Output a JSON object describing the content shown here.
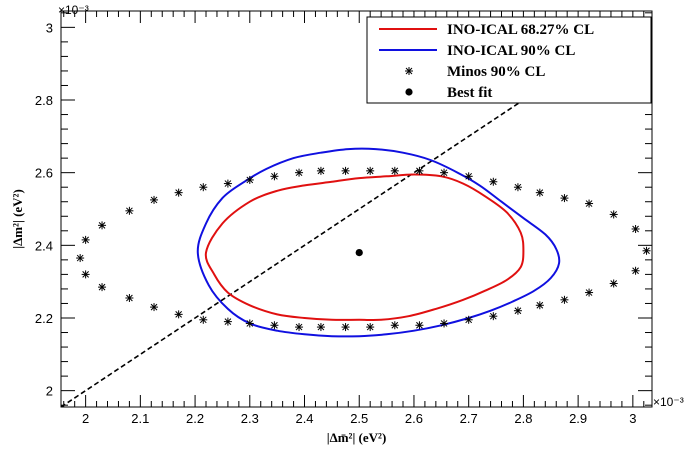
{
  "chart_data": {
    "type": "scatter",
    "xlabel": "|Δm̄²| (eV²)",
    "ylabel": "|Δm²| (eV²)",
    "x_multiplier": "×10⁻³",
    "y_multiplier": "×10⁻³",
    "xlim": [
      1.955,
      3.035
    ],
    "ylim": [
      1.955,
      3.045
    ],
    "x_ticks": [
      "2",
      "2.1",
      "2.2",
      "2.3",
      "2.4",
      "2.5",
      "2.6",
      "2.7",
      "2.8",
      "2.9",
      "3"
    ],
    "y_ticks": [
      "2",
      "2.2",
      "2.4",
      "2.6",
      "2.8",
      "3"
    ],
    "legend_position": "top-right",
    "series": [
      {
        "name": "INO-ICAL 68.27% CL",
        "kind": "contour",
        "color": "#e01010",
        "x": [
          2.22,
          2.25,
          2.3,
          2.35,
          2.4,
          2.45,
          2.5,
          2.55,
          2.6,
          2.65,
          2.69,
          2.73,
          2.77,
          2.795,
          2.8,
          2.795,
          2.77,
          2.73,
          2.69,
          2.64,
          2.59,
          2.54,
          2.5,
          2.45,
          2.4,
          2.35,
          2.3,
          2.26,
          2.235,
          2.22
        ],
        "y": [
          2.38,
          2.46,
          2.52,
          2.55,
          2.565,
          2.575,
          2.585,
          2.59,
          2.595,
          2.59,
          2.57,
          2.535,
          2.49,
          2.435,
          2.385,
          2.34,
          2.305,
          2.275,
          2.25,
          2.225,
          2.205,
          2.195,
          2.195,
          2.195,
          2.2,
          2.21,
          2.235,
          2.27,
          2.32,
          2.38
        ]
      },
      {
        "name": "INO-ICAL 90% CL",
        "kind": "contour",
        "color": "#1010e0",
        "x": [
          2.205,
          2.22,
          2.25,
          2.29,
          2.33,
          2.38,
          2.43,
          2.48,
          2.53,
          2.58,
          2.63,
          2.68,
          2.72,
          2.76,
          2.8,
          2.84,
          2.86,
          2.865,
          2.85,
          2.82,
          2.78,
          2.74,
          2.7,
          2.65,
          2.6,
          2.55,
          2.5,
          2.45,
          2.4,
          2.35,
          2.3,
          2.26,
          2.225,
          2.205
        ],
        "y": [
          2.38,
          2.46,
          2.53,
          2.575,
          2.61,
          2.64,
          2.655,
          2.665,
          2.665,
          2.655,
          2.635,
          2.6,
          2.565,
          2.52,
          2.475,
          2.43,
          2.39,
          2.35,
          2.31,
          2.275,
          2.245,
          2.22,
          2.2,
          2.18,
          2.165,
          2.155,
          2.15,
          2.15,
          2.155,
          2.165,
          2.185,
          2.225,
          2.29,
          2.38
        ]
      },
      {
        "name": "Minos 90% CL",
        "kind": "markers",
        "color": "#000000",
        "x": [
          1.99,
          2.0,
          2.03,
          2.08,
          2.125,
          2.17,
          2.215,
          2.26,
          2.3,
          2.345,
          2.39,
          2.43,
          2.475,
          2.52,
          2.565,
          2.61,
          2.655,
          2.7,
          2.745,
          2.79,
          2.83,
          2.875,
          2.92,
          2.965,
          3.005,
          3.025,
          3.005,
          2.965,
          2.92,
          2.875,
          2.83,
          2.79,
          2.745,
          2.7,
          2.655,
          2.61,
          2.565,
          2.52,
          2.475,
          2.43,
          2.39,
          2.345,
          2.3,
          2.26,
          2.215,
          2.17,
          2.125,
          2.08,
          2.03,
          2.0
        ],
        "y": [
          2.365,
          2.415,
          2.455,
          2.495,
          2.525,
          2.545,
          2.56,
          2.57,
          2.58,
          2.59,
          2.6,
          2.605,
          2.605,
          2.605,
          2.605,
          2.605,
          2.6,
          2.59,
          2.575,
          2.56,
          2.545,
          2.53,
          2.515,
          2.485,
          2.445,
          2.385,
          2.33,
          2.295,
          2.27,
          2.25,
          2.235,
          2.22,
          2.205,
          2.195,
          2.185,
          2.18,
          2.18,
          2.175,
          2.175,
          2.175,
          2.175,
          2.18,
          2.185,
          2.19,
          2.195,
          2.21,
          2.23,
          2.255,
          2.285,
          2.32
        ]
      },
      {
        "name": "Best fit",
        "kind": "point",
        "color": "#000000",
        "x": [
          2.5
        ],
        "y": [
          2.38
        ]
      }
    ],
    "diagonal_line": {
      "x": [
        1.955,
        2.8
      ],
      "y": [
        1.955,
        2.8
      ],
      "style": "dashed",
      "color": "#000000"
    }
  }
}
